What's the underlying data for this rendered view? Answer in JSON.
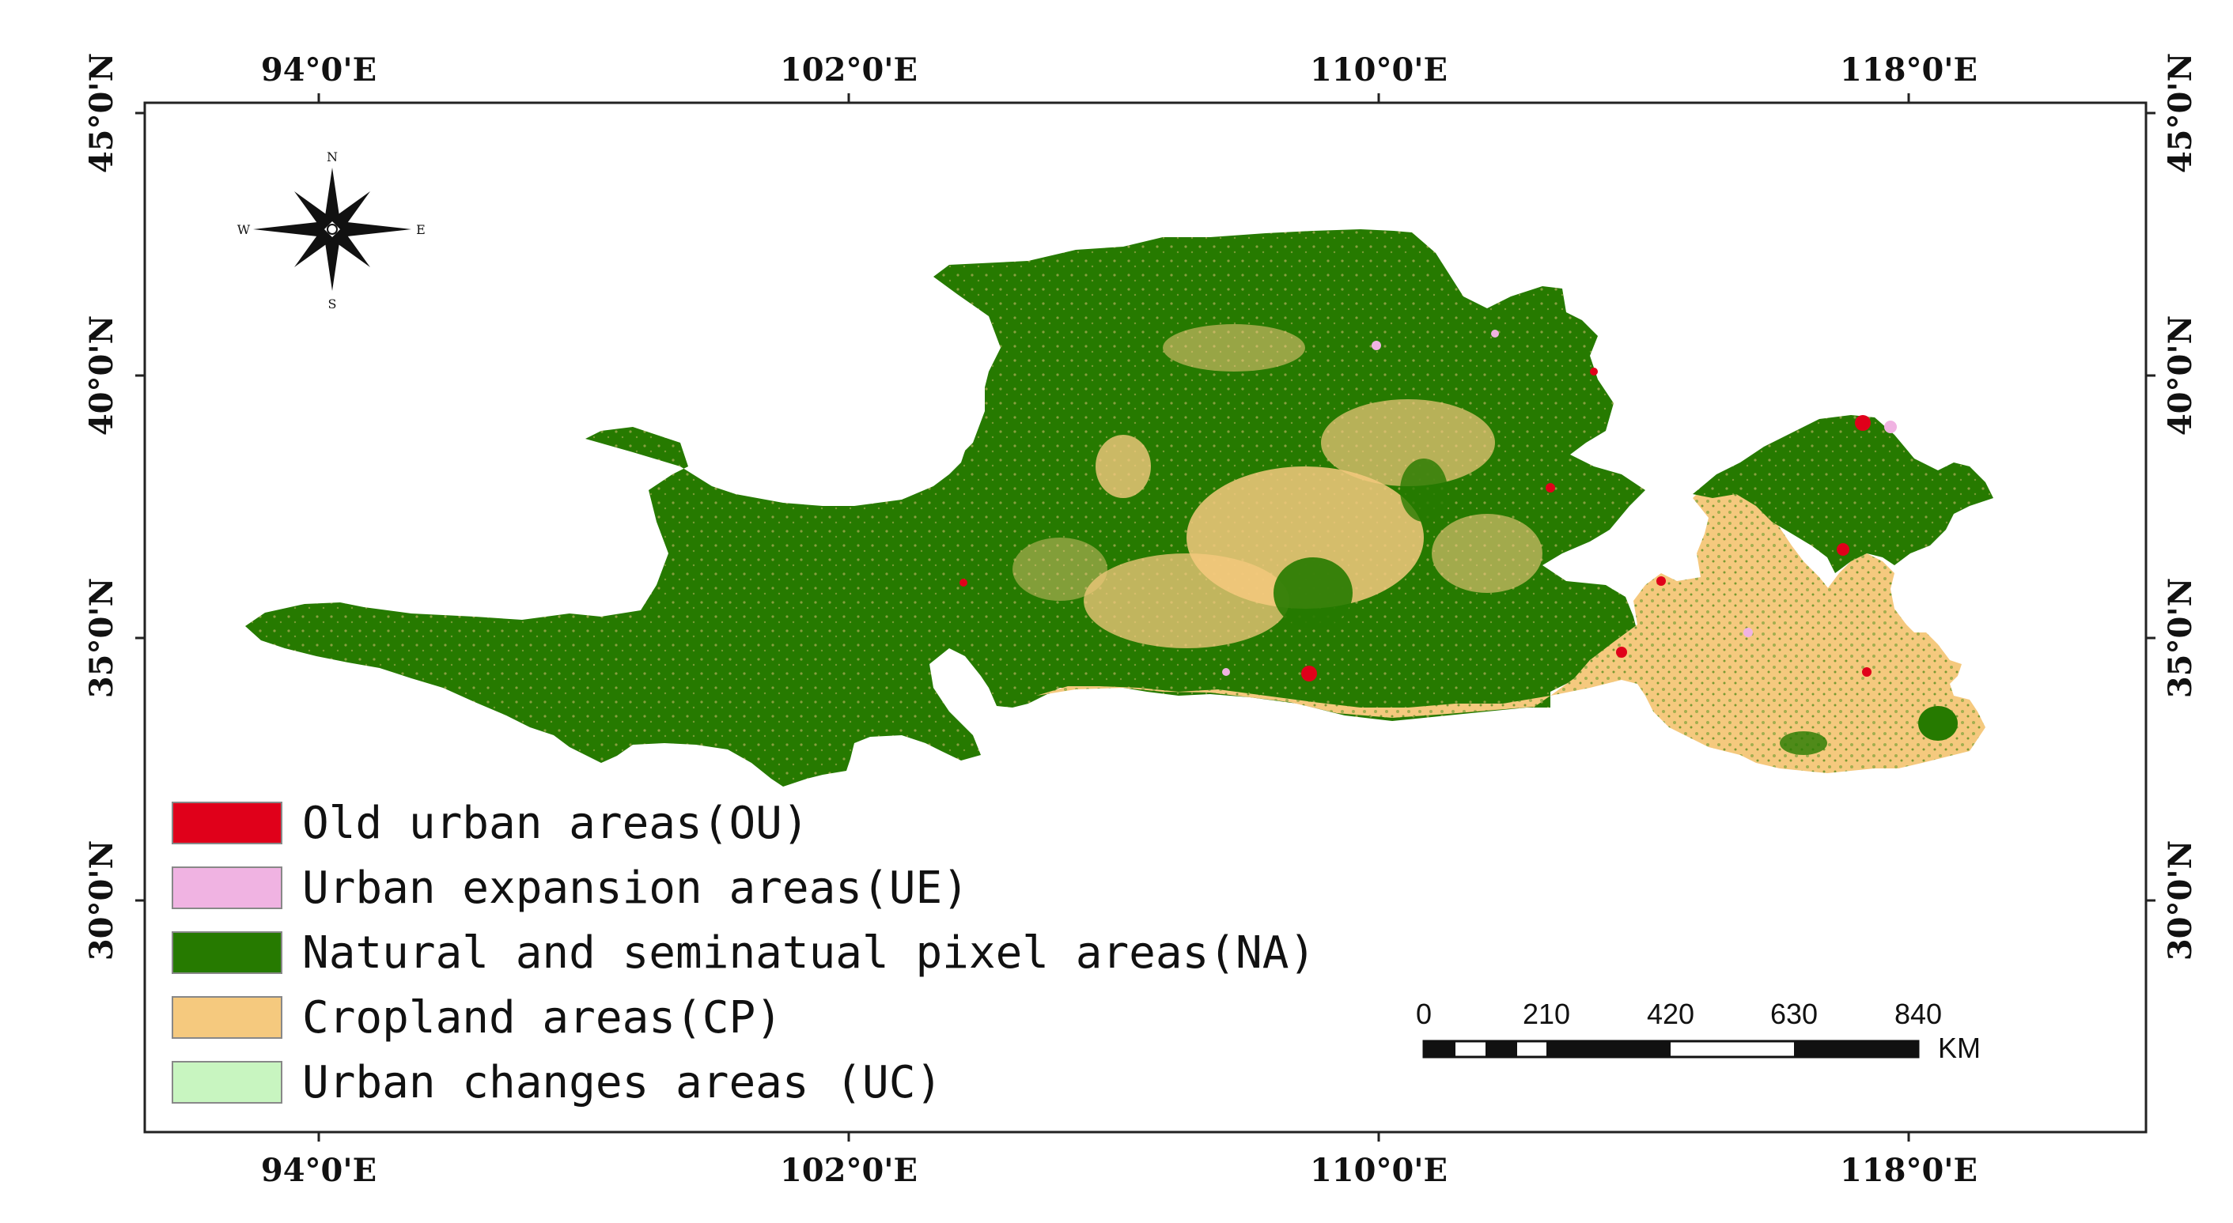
{
  "map": {
    "lon_labels": [
      "94°0'E",
      "102°0'E",
      "110°0'E",
      "118°0'E"
    ],
    "lat_labels": [
      "45°0'N",
      "40°0'N",
      "35°0'N",
      "30°0'N"
    ],
    "colors": {
      "old_urban": "#e0001a",
      "urban_expansion": "#f0b3e2",
      "natural": "#267a00",
      "cropland": "#f5c97e",
      "urban_changes": "#c8f5c0"
    }
  },
  "compass": {
    "n": "N",
    "s": "S",
    "e": "E",
    "w": "W"
  },
  "legend": {
    "items": [
      {
        "label": "Old urban areas(OU)",
        "color": "#e0001a"
      },
      {
        "label": "Urban expansion areas(UE)",
        "color": "#f0b3e2"
      },
      {
        "label": "Natural and seminatual pixel areas(NA)",
        "color": "#267a00"
      },
      {
        "label": "Cropland areas(CP)",
        "color": "#f5c97e"
      },
      {
        "label": "Urban changes areas (UC)",
        "color": "#c8f5c0"
      }
    ]
  },
  "scale_bar": {
    "ticks": [
      "0",
      "210",
      "420",
      "630",
      "840"
    ],
    "unit": "KM"
  }
}
